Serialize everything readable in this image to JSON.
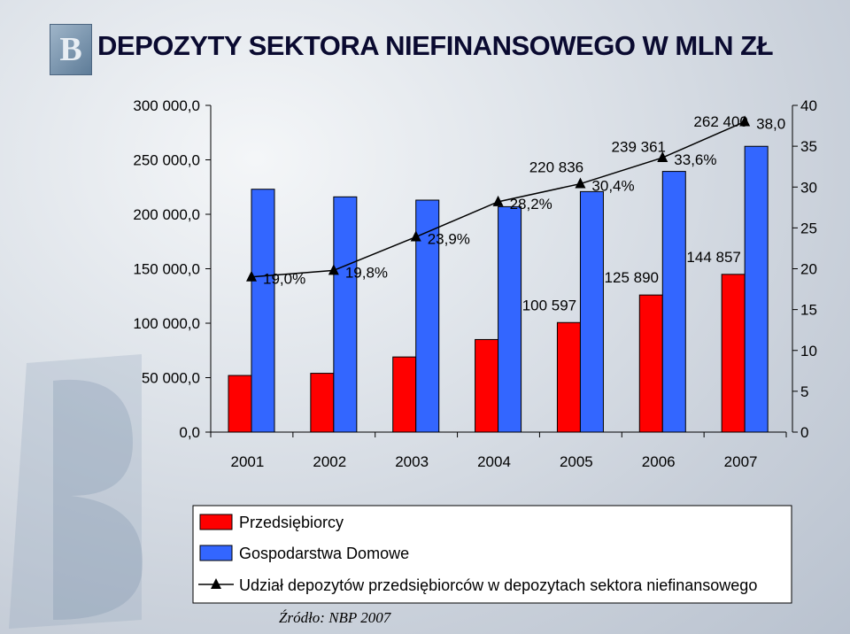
{
  "title": "DEPOZYTY SEKTORA NIEFINANSOWEGO W MLN ZŁ",
  "source": "Źródło: NBP 2007",
  "logo_letter": "B",
  "chart_data": {
    "type": "bar",
    "categories": [
      "2001",
      "2002",
      "2003",
      "2004",
      "2005",
      "2006",
      "2007"
    ],
    "series": [
      {
        "name": "Przedsiębiorcy",
        "color": "#ff0000",
        "values": [
          52000,
          54000,
          69000,
          85000,
          100597,
          125890,
          144857
        ]
      },
      {
        "name": "Gospodarstwa Domowe",
        "color": "#3366ff",
        "values": [
          223000,
          216000,
          213000,
          207000,
          220836,
          239361,
          262400
        ]
      }
    ],
    "line_series": {
      "name": "Udział depozytów przedsiębiorców w depozytach sektora niefinansowego",
      "values": [
        19.0,
        19.8,
        23.9,
        28.2,
        30.4,
        33.6,
        38.0
      ],
      "axis": "right"
    },
    "bar_value_labels": [
      {
        "category": "2005",
        "series": "Przedsiębiorcy",
        "text": "100 597"
      },
      {
        "category": "2006",
        "series": "Przedsiębiorcy",
        "text": "125 890"
      },
      {
        "category": "2007",
        "series": "Przedsiębiorcy",
        "text": "144 857"
      },
      {
        "category": "2005",
        "series": "Gospodarstwa Domowe",
        "text": "220 836"
      },
      {
        "category": "2006",
        "series": "Gospodarstwa Domowe",
        "text": "239 361"
      },
      {
        "category": "2007",
        "series": "Gospodarstwa Domowe",
        "text": "262 400"
      }
    ],
    "line_value_labels": [
      "19,0%",
      "19,8%",
      "23,9%",
      "28,2%",
      "30,4%",
      "33,6%",
      "38,0"
    ],
    "ylim": [
      0,
      300000
    ],
    "yticks": [
      "0,0",
      "50 000,0",
      "100 000,0",
      "150 000,0",
      "200 000,0",
      "250 000,0",
      "300 000,0"
    ],
    "y2lim": [
      0,
      40
    ],
    "y2ticks": [
      "0",
      "5",
      "10",
      "15",
      "20",
      "25",
      "30",
      "35",
      "40"
    ],
    "legend_position": "bottom"
  }
}
